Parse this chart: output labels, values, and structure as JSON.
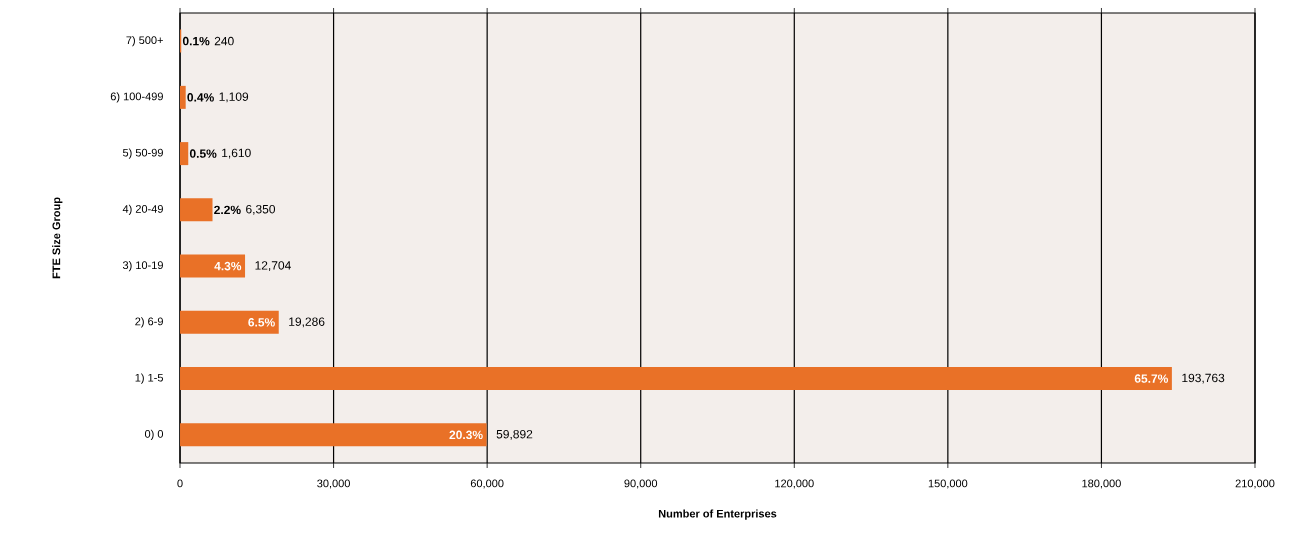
{
  "chart_data": {
    "type": "bar",
    "orientation": "horizontal",
    "xlabel": "Number of Enterprises",
    "ylabel": "FTE Size Group",
    "categories": [
      "7) 500+",
      "6) 100-499",
      "5) 50-99",
      "4) 20-49",
      "3) 10-19",
      "2) 6-9",
      "1) 1-5",
      "0) 0"
    ],
    "values": [
      240,
      1109,
      1610,
      6350,
      12704,
      19286,
      193763,
      59892
    ],
    "value_labels": [
      "240",
      "1,109",
      "1,610",
      "6,350",
      "12,704",
      "19,286",
      "193,763",
      "59,892"
    ],
    "color": "#e97127",
    "annotations": [
      {
        "text": "0.1%",
        "x": 240,
        "y": "7) 500+"
      },
      {
        "text": "0.4%",
        "x": 1109,
        "y": "6) 100-499"
      },
      {
        "text": "0.5%",
        "x": 1610,
        "y": "5) 50-99"
      },
      {
        "text": "2.2%",
        "x": 6350,
        "y": "4) 20-49"
      },
      {
        "text": "4.3%",
        "x": 12704,
        "y": "3) 10-19"
      },
      {
        "text": "6.5%",
        "x": 19286,
        "y": "2) 6-9"
      },
      {
        "text": "65.7%",
        "x": 193763,
        "y": "1) 1-5"
      },
      {
        "text": "20.3%",
        "x": 59892,
        "y": "0) 0"
      }
    ],
    "xlim": [
      0,
      210000
    ],
    "xticks": [
      0,
      {
        "value": 30000,
        "label": "30,000"
      },
      {
        "value": 60000,
        "label": "60,000"
      },
      {
        "value": 90000,
        "label": "90,000"
      },
      {
        "value": 120000,
        "label": "120,000"
      },
      {
        "value": 150000,
        "label": "150,000"
      },
      {
        "value": 180000,
        "label": "180,000"
      },
      {
        "value": 210000,
        "label": "210,000"
      }
    ],
    "grid": "x"
  }
}
